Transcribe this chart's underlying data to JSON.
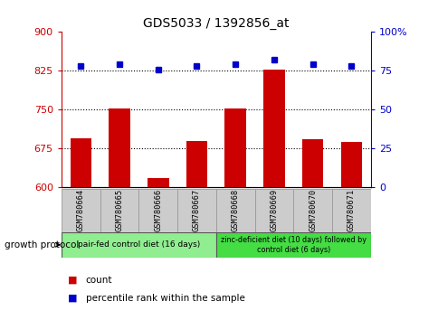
{
  "title": "GDS5033 / 1392856_at",
  "samples": [
    "GSM780664",
    "GSM780665",
    "GSM780666",
    "GSM780667",
    "GSM780668",
    "GSM780669",
    "GSM780670",
    "GSM780671"
  ],
  "counts": [
    695,
    752,
    618,
    690,
    752,
    828,
    692,
    688
  ],
  "percentiles": [
    78,
    79,
    76,
    78,
    79,
    82,
    79,
    78
  ],
  "ylim_left": [
    600,
    900
  ],
  "ylim_right": [
    0,
    100
  ],
  "yticks_left": [
    600,
    675,
    750,
    825,
    900
  ],
  "yticks_right": [
    0,
    25,
    50,
    75,
    100
  ],
  "ytick_labels_right": [
    "0",
    "25",
    "50",
    "75",
    "100%"
  ],
  "hlines": [
    675,
    750,
    825
  ],
  "bar_color": "#cc0000",
  "dot_color": "#0000cc",
  "group1_label": "pair-fed control diet (16 days)",
  "group2_label": "zinc-deficient diet (10 days) followed by\ncontrol diet (6 days)",
  "group1_indices": [
    0,
    1,
    2,
    3
  ],
  "group2_indices": [
    4,
    5,
    6,
    7
  ],
  "group1_color": "#90ee90",
  "group2_color": "#44dd44",
  "sample_box_color": "#cccccc",
  "legend_count_color": "#cc0000",
  "legend_pct_color": "#0000cc",
  "growth_protocol_label": "growth protocol",
  "title_color": "#000000",
  "left_axis_color": "#cc0000",
  "right_axis_color": "#0000cc",
  "bar_bottom": 600,
  "fig_width": 4.85,
  "fig_height": 3.54,
  "dpi": 100
}
